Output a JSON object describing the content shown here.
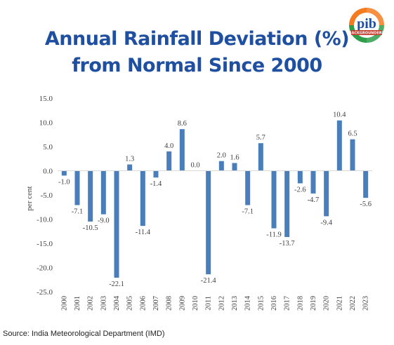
{
  "title_line1": "Annual Rainfall Deviation (%)",
  "title_line2": "from Normal Since 2000",
  "source": "Source: India Meteorological Department (IMD)",
  "logo": {
    "text": "pib",
    "subtext": "BACKGROUNDERS",
    "icon": "pib-logo"
  },
  "colors": {
    "title": "#1e4fa0",
    "bar": "#4a7ebb",
    "axis": "#d9d9d9",
    "label": "#404040"
  },
  "chart_data": {
    "type": "bar",
    "categories": [
      "2000",
      "2001",
      "2002",
      "2003",
      "2004",
      "2005",
      "2006",
      "2007",
      "2008",
      "2009",
      "2010",
      "2011",
      "2012",
      "2013",
      "2014",
      "2015",
      "2016",
      "2017",
      "2018",
      "2019",
      "2020",
      "2021",
      "2022",
      "2023"
    ],
    "values": [
      -1.0,
      -7.1,
      -10.5,
      -9.0,
      -22.1,
      1.3,
      -11.4,
      -1.4,
      4.0,
      8.6,
      0.0,
      -21.4,
      2.0,
      1.6,
      -7.1,
      5.7,
      -11.9,
      -13.7,
      -2.6,
      -4.7,
      -9.4,
      10.4,
      6.5,
      -5.6
    ],
    "data_labels": [
      "-1.0",
      "-7.1",
      "-10.5",
      "-9.0",
      "-22.1",
      "1.3",
      "-11.4",
      "-1.4",
      "4.0",
      "8.6",
      "0.0",
      "-21.4",
      "2.0",
      "1.6",
      "-7.1",
      "5.7",
      "-11.9",
      "-13.7",
      "-2.6",
      "-4.7",
      "-9.4",
      "10.4",
      "6.5",
      "-5.6"
    ],
    "ylabel": "per cent",
    "xlabel": "",
    "ylim": [
      -25,
      15
    ],
    "yticks": [
      "15.0",
      "10.0",
      "5.0",
      "0.0",
      "-5.0",
      "-10.0",
      "-15.0",
      "-20.0",
      "-25.0"
    ],
    "ytick_values": [
      15,
      10,
      5,
      0,
      -5,
      -10,
      -15,
      -20,
      -25
    ],
    "grid": false
  }
}
